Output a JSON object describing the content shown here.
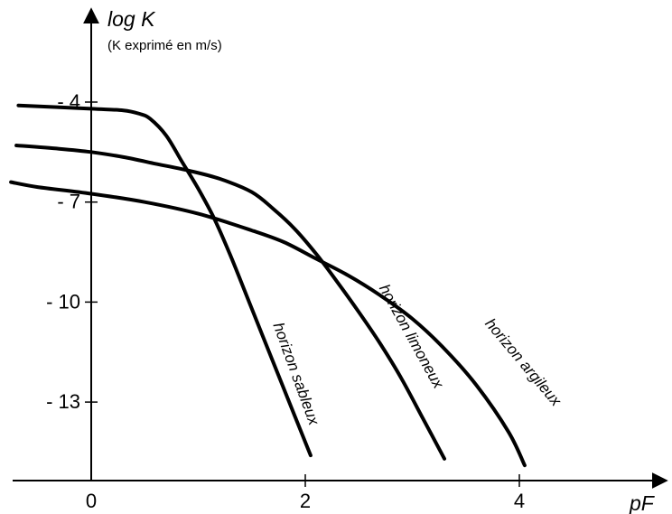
{
  "chart_data": {
    "type": "line",
    "title": "",
    "xlabel": "pF",
    "ylabel": "log K",
    "ylabel_note": "(K exprimé en m/s)",
    "xlim": [
      -0.75,
      4.7
    ],
    "ylim": [
      -15.6,
      -1.8
    ],
    "x_ticks": [
      0,
      2,
      4
    ],
    "x_tick_labels": [
      "0",
      "2",
      "4"
    ],
    "y_ticks": [
      -4,
      -7,
      -10,
      -13
    ],
    "y_tick_labels": [
      "- 4",
      "- 7",
      "- 10",
      "- 13"
    ],
    "grid": false,
    "legend": "none",
    "series": [
      {
        "name": "horizon sableux",
        "x": [
          -0.68,
          0.0,
          0.3,
          0.45,
          0.55,
          0.7,
          0.85,
          1.0,
          1.15,
          1.3,
          1.5,
          1.7,
          1.9,
          2.05
        ],
        "y": [
          -4.1,
          -4.2,
          -4.25,
          -4.35,
          -4.5,
          -5.0,
          -5.8,
          -6.6,
          -7.5,
          -8.6,
          -10.2,
          -11.8,
          -13.4,
          -14.6
        ]
      },
      {
        "name": "horizon limoneux",
        "x": [
          -0.7,
          -0.3,
          0.0,
          0.3,
          0.6,
          0.9,
          1.2,
          1.5,
          1.7,
          1.9,
          2.1,
          2.3,
          2.5,
          2.7,
          2.9,
          3.1,
          3.3
        ],
        "y": [
          -5.3,
          -5.4,
          -5.5,
          -5.65,
          -5.85,
          -6.05,
          -6.3,
          -6.7,
          -7.2,
          -7.8,
          -8.55,
          -9.4,
          -10.3,
          -11.25,
          -12.3,
          -13.5,
          -14.7
        ]
      },
      {
        "name": "horizon argileux",
        "x": [
          -0.75,
          -0.5,
          0.0,
          0.5,
          1.0,
          1.5,
          1.8,
          2.1,
          2.4,
          2.7,
          3.0,
          3.3,
          3.6,
          3.9,
          4.05
        ],
        "y": [
          -6.4,
          -6.55,
          -6.75,
          -7.0,
          -7.35,
          -7.85,
          -8.2,
          -8.7,
          -9.2,
          -9.8,
          -10.5,
          -11.4,
          -12.5,
          -13.9,
          -14.9
        ]
      }
    ],
    "series_labels": [
      {
        "text": "horizon sableux",
        "at_x": 1.87,
        "at_y": -12.2
      },
      {
        "text": "horizon limoneux",
        "at_x": 2.95,
        "at_y": -11.1
      },
      {
        "text": "horizon argileux",
        "at_x": 4.0,
        "at_y": -11.9
      }
    ]
  }
}
